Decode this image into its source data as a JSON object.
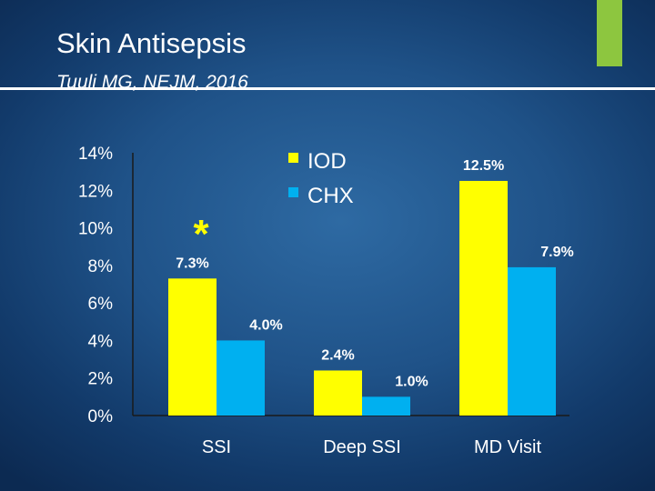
{
  "slide": {
    "title": "Skin Antisepsis",
    "subtitle": "Tuuli MG, NEJM, 2016"
  },
  "colors": {
    "accent": "#8dc63f",
    "iod": "#ffff00",
    "chx": "#00b0f0",
    "asterisk": "#ffff00"
  },
  "chart_data": {
    "type": "bar",
    "categories": [
      "SSI",
      "Deep SSI",
      "MD Visit"
    ],
    "series": [
      {
        "name": "IOD",
        "color": "#ffff00",
        "values": [
          7.3,
          2.4,
          12.5
        ],
        "labels": [
          "7.3%",
          "2.4%",
          "12.5%"
        ]
      },
      {
        "name": "CHX",
        "color": "#00b0f0",
        "values": [
          4.0,
          1.0,
          7.9
        ],
        "labels": [
          "4.0%",
          "1.0%",
          "7.9%"
        ]
      }
    ],
    "yticks": [
      "0%",
      "2%",
      "4%",
      "6%",
      "8%",
      "10%",
      "12%",
      "14%"
    ],
    "ylim": [
      0,
      14
    ],
    "legend_position": "top-center",
    "grid": false,
    "annotation": {
      "text": "*",
      "category": "SSI"
    }
  }
}
